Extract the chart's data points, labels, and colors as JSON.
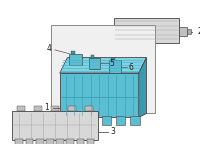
{
  "bg_color": "#ffffff",
  "blue": "#5bbfd4",
  "blue_dark": "#3a9ab0",
  "blue_light": "#7fd4e4",
  "blue_mid": "#4eb0c8",
  "gray_fill": "#d8d8d8",
  "gray_dark": "#aaaaaa",
  "gray_med": "#c0c0c0",
  "outline": "#444444",
  "leader": "#555555",
  "label_color": "#222222",
  "hbox_edge": "#888888",
  "hbox_fill": "#f0f0f0",
  "figsize": [
    2.0,
    1.47
  ],
  "dpi": 100
}
